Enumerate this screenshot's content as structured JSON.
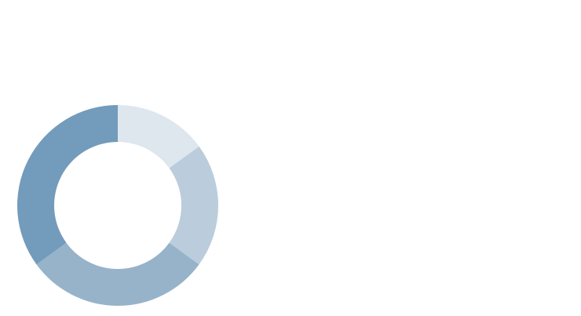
{
  "chart_data": {
    "type": "pie",
    "variant": "donut",
    "categories": [
      "",
      "",
      "",
      ""
    ],
    "values": [
      15,
      20,
      30,
      35
    ],
    "colors": [
      "#dee6ee",
      "#bbcddc",
      "#97b3c9",
      "#739bbb"
    ],
    "legend": "none",
    "data_labels": "none"
  }
}
